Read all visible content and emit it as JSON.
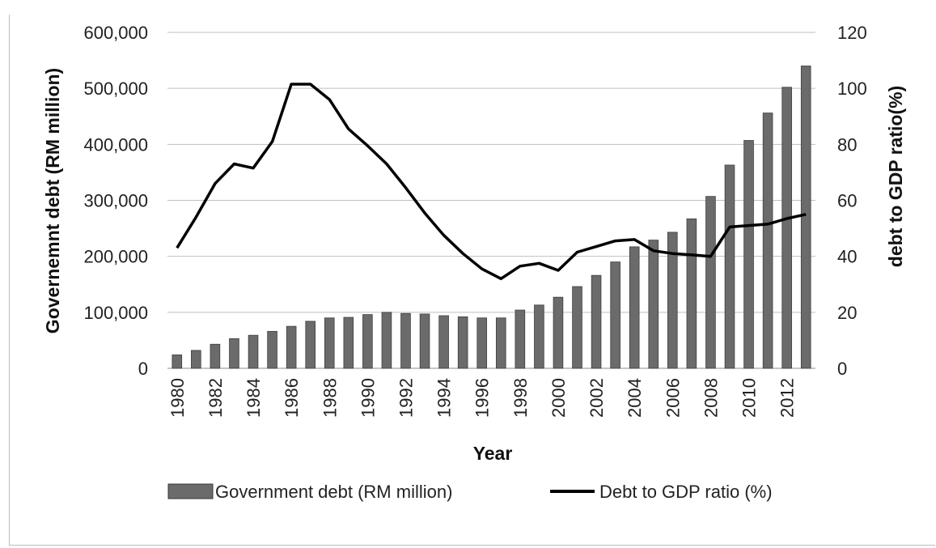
{
  "chart_data": {
    "type": "bar",
    "title": "",
    "xlabel": "Year",
    "ylabel": "Governemnt debt (RM million)",
    "y2label": "debt to GDP ratio(%)",
    "ylim": [
      0,
      600000
    ],
    "y2lim": [
      0,
      120
    ],
    "yticks": [
      "0",
      "100,000",
      "200,000",
      "300,000",
      "400,000",
      "500,000",
      "600,000"
    ],
    "y2ticks": [
      "0",
      "20",
      "40",
      "60",
      "80",
      "100",
      "120"
    ],
    "x_tick_labels": [
      "1980",
      "1982",
      "1984",
      "1986",
      "1988",
      "1990",
      "1992",
      "1994",
      "1996",
      "1998",
      "2000",
      "2002",
      "2004",
      "2006",
      "2008",
      "2010",
      "2012"
    ],
    "grid": true,
    "legend_position": "bottom",
    "colors": {
      "bar": "#6b6b6b",
      "line": "#000000",
      "grid": "#bfbfbf"
    },
    "categories": [
      1980,
      1981,
      1982,
      1983,
      1984,
      1985,
      1986,
      1987,
      1988,
      1989,
      1990,
      1991,
      1992,
      1993,
      1994,
      1995,
      1996,
      1997,
      1998,
      1999,
      2000,
      2001,
      2002,
      2003,
      2004,
      2005,
      2006,
      2007,
      2008,
      2009,
      2010,
      2011,
      2012,
      2013
    ],
    "series": [
      {
        "name": "Government debt (RM million)",
        "type": "bar",
        "axis": "left",
        "values": [
          24000,
          32000,
          43000,
          53000,
          59000,
          66000,
          75000,
          84000,
          90000,
          91000,
          96000,
          100000,
          98000,
          97000,
          94000,
          92000,
          90000,
          90000,
          104000,
          113000,
          127000,
          146000,
          166000,
          190000,
          217000,
          229000,
          243000,
          267000,
          307000,
          363000,
          407000,
          456000,
          502000,
          540000
        ]
      },
      {
        "name": "Debt to GDP ratio (%)",
        "type": "line",
        "axis": "right",
        "values": [
          43,
          54,
          66,
          73,
          71.5,
          81,
          101.5,
          101.5,
          96,
          85.5,
          79.5,
          73,
          64.5,
          55.5,
          47.5,
          41,
          35.5,
          32,
          36.5,
          37.5,
          35,
          41.5,
          43.5,
          45.5,
          46,
          42,
          41,
          40.5,
          40,
          50.5,
          51,
          51.5,
          53.5,
          55
        ]
      }
    ]
  }
}
